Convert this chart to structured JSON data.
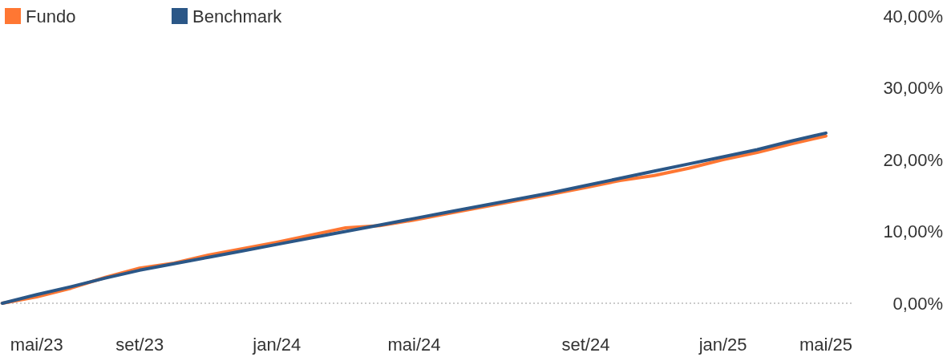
{
  "chart_data": {
    "type": "line",
    "categories": [
      null,
      "mai/23",
      null,
      null,
      "set/23",
      null,
      null,
      null,
      "jan/24",
      null,
      null,
      null,
      "mai/24",
      null,
      null,
      null,
      null,
      "set/24",
      null,
      null,
      null,
      "jan/25",
      null,
      null,
      "mai/25"
    ],
    "series": [
      {
        "name": "Fundo",
        "color": "#ff7733",
        "values": [
          0,
          0.9,
          2.1,
          3.6,
          4.9,
          5.6,
          6.7,
          7.6,
          8.5,
          9.5,
          10.5,
          10.8,
          11.6,
          12.5,
          13.4,
          14.3,
          15.2,
          16.1,
          17.1,
          17.8,
          18.8,
          20.0,
          21.0,
          22.2,
          23.3
        ]
      },
      {
        "name": "Benchmark",
        "color": "#2b5787",
        "values": [
          0,
          1.2,
          2.3,
          3.5,
          4.6,
          5.5,
          6.4,
          7.3,
          8.2,
          9.1,
          10.0,
          10.9,
          11.8,
          12.7,
          13.6,
          14.5,
          15.4,
          16.4,
          17.4,
          18.4,
          19.4,
          20.4,
          21.4,
          22.6,
          23.7
        ]
      }
    ],
    "ylim": [
      0,
      40
    ],
    "yticks": [
      {
        "value": 0,
        "label": "0,00%"
      },
      {
        "value": 10,
        "label": "10,00%"
      },
      {
        "value": 20,
        "label": "20,00%"
      },
      {
        "value": 30,
        "label": "30,00%"
      },
      {
        "value": 40,
        "label": "40,00%"
      }
    ],
    "ref_lines": [
      {
        "axis": "y",
        "value": 0,
        "color": "#bbbbbb",
        "line_style": "dotted"
      }
    ],
    "grid": false,
    "legend": "top left",
    "marker": "none",
    "line_style": "solid"
  }
}
